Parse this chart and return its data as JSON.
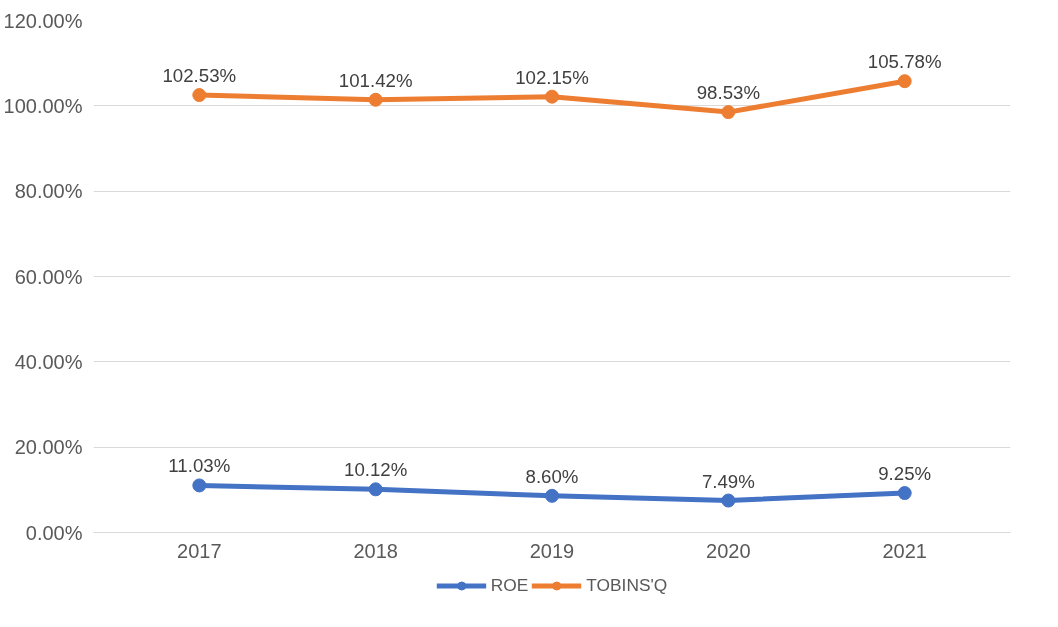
{
  "chart_data": {
    "type": "line",
    "categories": [
      "2017",
      "2018",
      "2019",
      "2020",
      "2021"
    ],
    "series": [
      {
        "name": "ROE",
        "color": "#4472c4",
        "values": [
          11.03,
          10.12,
          8.6,
          7.49,
          9.25
        ],
        "value_labels": [
          "11.03%",
          "10.12%",
          "8.60%",
          "7.49%",
          "9.25%"
        ]
      },
      {
        "name": "TOBINS'Q",
        "color": "#ed7d31",
        "values": [
          102.53,
          101.42,
          102.15,
          98.53,
          105.78
        ],
        "value_labels": [
          "102.53%",
          "101.42%",
          "102.15%",
          "98.53%",
          "105.78%"
        ]
      }
    ],
    "ylim": [
      0,
      120
    ],
    "yticks": [
      {
        "value": 0,
        "label": "0.00%"
      },
      {
        "value": 20,
        "label": "20.00%"
      },
      {
        "value": 40,
        "label": "40.00%"
      },
      {
        "value": 60,
        "label": "60.00%"
      },
      {
        "value": 80,
        "label": "80.00%"
      },
      {
        "value": 100,
        "label": "100.00%"
      },
      {
        "value": 120,
        "label": "120.00%"
      }
    ],
    "grid": "y",
    "legend": "bottom",
    "marker": "circle",
    "line_style": "solid"
  }
}
